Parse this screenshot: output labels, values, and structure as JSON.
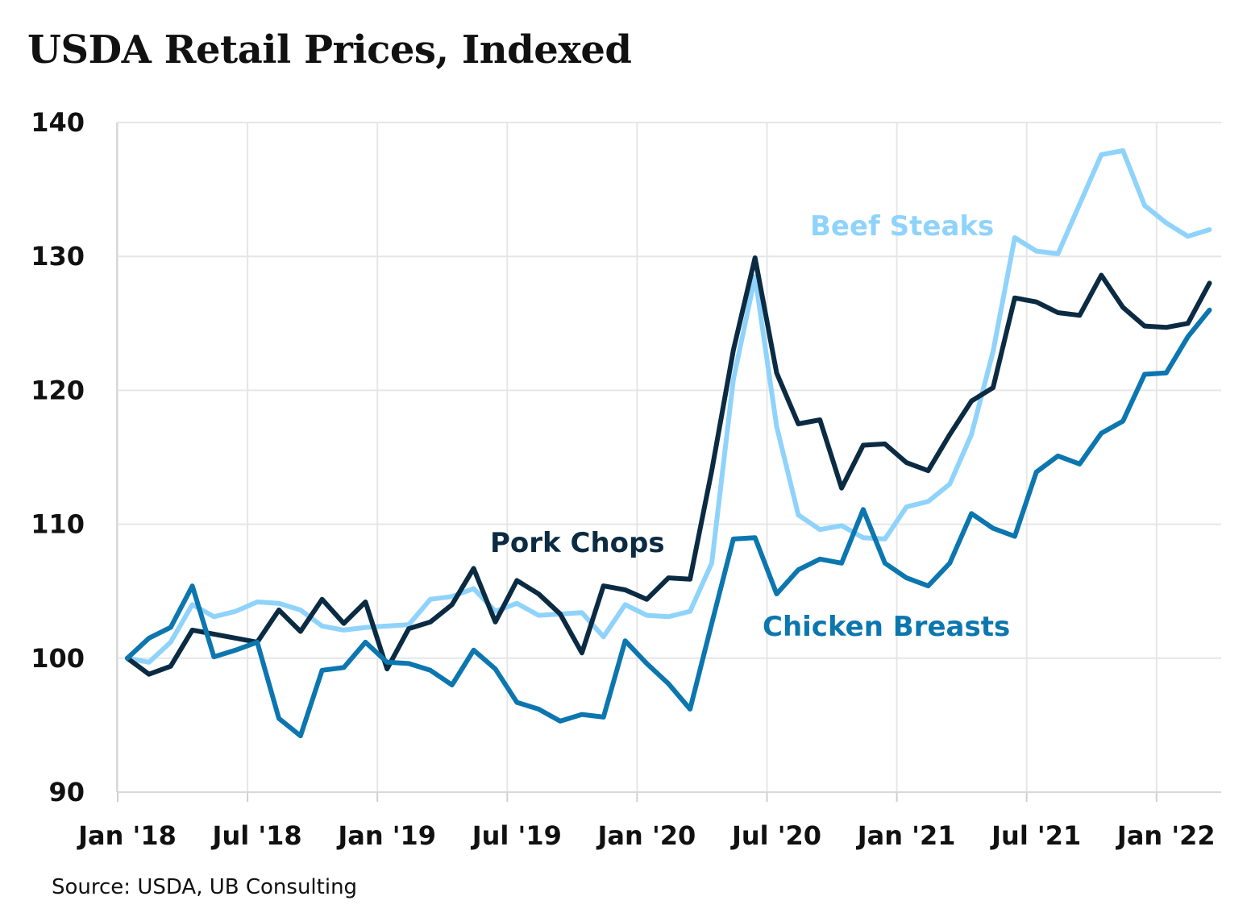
{
  "title": "USDA Retail Prices, Indexed",
  "source": "Source: USDA, UB Consulting",
  "chart_data": {
    "type": "line",
    "title": "USDA Retail Prices, Indexed",
    "xlabel": "",
    "ylabel": "",
    "ylim": [
      90,
      140
    ],
    "yticks": [
      90,
      100,
      110,
      120,
      130,
      140
    ],
    "xtick_labels": [
      "Jan '18",
      "Jul '18",
      "Jan '19",
      "Jul '19",
      "Jan '20",
      "Jul '20",
      "Jan '21",
      "Jul '21",
      "Jan '22"
    ],
    "xtick_index": [
      0,
      6,
      12,
      18,
      24,
      30,
      36,
      42,
      48
    ],
    "x": [
      "2018-01",
      "2018-02",
      "2018-03",
      "2018-04",
      "2018-05",
      "2018-06",
      "2018-07",
      "2018-08",
      "2018-09",
      "2018-10",
      "2018-11",
      "2018-12",
      "2019-01",
      "2019-02",
      "2019-03",
      "2019-04",
      "2019-05",
      "2019-06",
      "2019-07",
      "2019-08",
      "2019-09",
      "2019-10",
      "2019-11",
      "2019-12",
      "2020-01",
      "2020-02",
      "2020-03",
      "2020-04",
      "2020-05",
      "2020-06",
      "2020-07",
      "2020-08",
      "2020-09",
      "2020-10",
      "2020-11",
      "2020-12",
      "2021-01",
      "2021-02",
      "2021-03",
      "2021-04",
      "2021-05",
      "2021-06",
      "2021-07",
      "2021-08",
      "2021-09",
      "2021-10",
      "2021-11",
      "2021-12",
      "2022-01",
      "2022-02",
      "2022-03"
    ],
    "grid": true,
    "legend": "inline labels",
    "series": [
      {
        "name": "Beef Steaks",
        "color": "#8fd3fb",
        "values": [
          100.0,
          99.7,
          101.2,
          104.0,
          103.1,
          103.5,
          104.2,
          104.1,
          103.6,
          102.4,
          102.1,
          102.3,
          102.4,
          102.5,
          104.4,
          104.6,
          105.2,
          103.5,
          104.1,
          103.2,
          103.3,
          103.4,
          101.6,
          104.0,
          103.2,
          103.1,
          103.5,
          107.1,
          120.8,
          128.5,
          117.3,
          110.7,
          109.6,
          109.9,
          109.0,
          108.9,
          111.3,
          111.7,
          113.0,
          116.7,
          122.9,
          131.4,
          130.4,
          130.2,
          133.9,
          137.6,
          137.9,
          133.8,
          132.5,
          131.5,
          132.0
        ]
      },
      {
        "name": "Pork Chops",
        "color": "#0b2b43",
        "values": [
          100.0,
          98.8,
          99.4,
          102.1,
          101.8,
          101.5,
          101.2,
          103.6,
          102.0,
          104.4,
          102.6,
          104.2,
          99.2,
          102.2,
          102.7,
          104.0,
          106.7,
          102.7,
          105.8,
          104.8,
          103.3,
          100.4,
          105.4,
          105.1,
          104.4,
          106.0,
          105.9,
          114.0,
          123.0,
          129.9,
          121.3,
          117.5,
          117.8,
          112.7,
          115.9,
          116.0,
          114.6,
          114.0,
          116.7,
          119.2,
          120.2,
          126.9,
          126.6,
          125.8,
          125.6,
          128.6,
          126.2,
          124.8,
          124.7,
          125.0,
          128.0
        ]
      },
      {
        "name": "Chicken Breasts",
        "color": "#0c76af",
        "values": [
          100.0,
          101.5,
          102.3,
          105.4,
          100.1,
          100.6,
          101.2,
          95.5,
          94.2,
          99.1,
          99.3,
          101.2,
          99.7,
          99.6,
          99.1,
          98.0,
          100.6,
          99.2,
          96.7,
          96.2,
          95.3,
          95.8,
          95.6,
          101.3,
          99.6,
          98.1,
          96.2,
          102.6,
          108.9,
          109.0,
          104.8,
          106.6,
          107.4,
          107.1,
          111.1,
          107.1,
          106.0,
          105.4,
          107.1,
          110.8,
          109.7,
          109.1,
          113.9,
          115.1,
          114.5,
          116.8,
          117.7,
          121.2,
          121.3,
          124.0,
          126.0
        ]
      }
    ]
  }
}
